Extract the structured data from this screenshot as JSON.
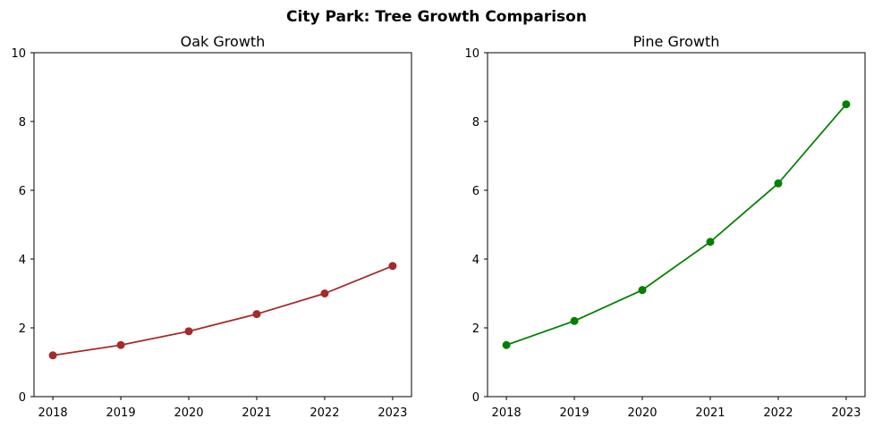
{
  "figure": {
    "title": "City Park: Tree Growth Comparison"
  },
  "chart_data": [
    {
      "type": "line",
      "title": "Oak Growth",
      "xlabel": "",
      "ylabel": "",
      "x": [
        "2018",
        "2019",
        "2020",
        "2021",
        "2022",
        "2023"
      ],
      "series": [
        {
          "values": [
            1.2,
            1.5,
            1.9,
            2.4,
            3.0,
            3.8
          ],
          "color": "#a52a2a",
          "marker": "circle"
        }
      ],
      "ylim": [
        0,
        10
      ],
      "yticks": [
        "0",
        "2",
        "4",
        "6",
        "8",
        "10"
      ],
      "grid": false,
      "legend": "none"
    },
    {
      "type": "line",
      "title": "Pine Growth",
      "xlabel": "",
      "ylabel": "",
      "x": [
        "2018",
        "2019",
        "2020",
        "2021",
        "2022",
        "2023"
      ],
      "series": [
        {
          "values": [
            1.5,
            2.2,
            3.1,
            4.5,
            6.2,
            8.5
          ],
          "color": "#008000",
          "marker": "circle"
        }
      ],
      "ylim": [
        0,
        10
      ],
      "yticks": [
        "0",
        "2",
        "4",
        "6",
        "8",
        "10"
      ],
      "grid": false,
      "legend": "none"
    }
  ]
}
